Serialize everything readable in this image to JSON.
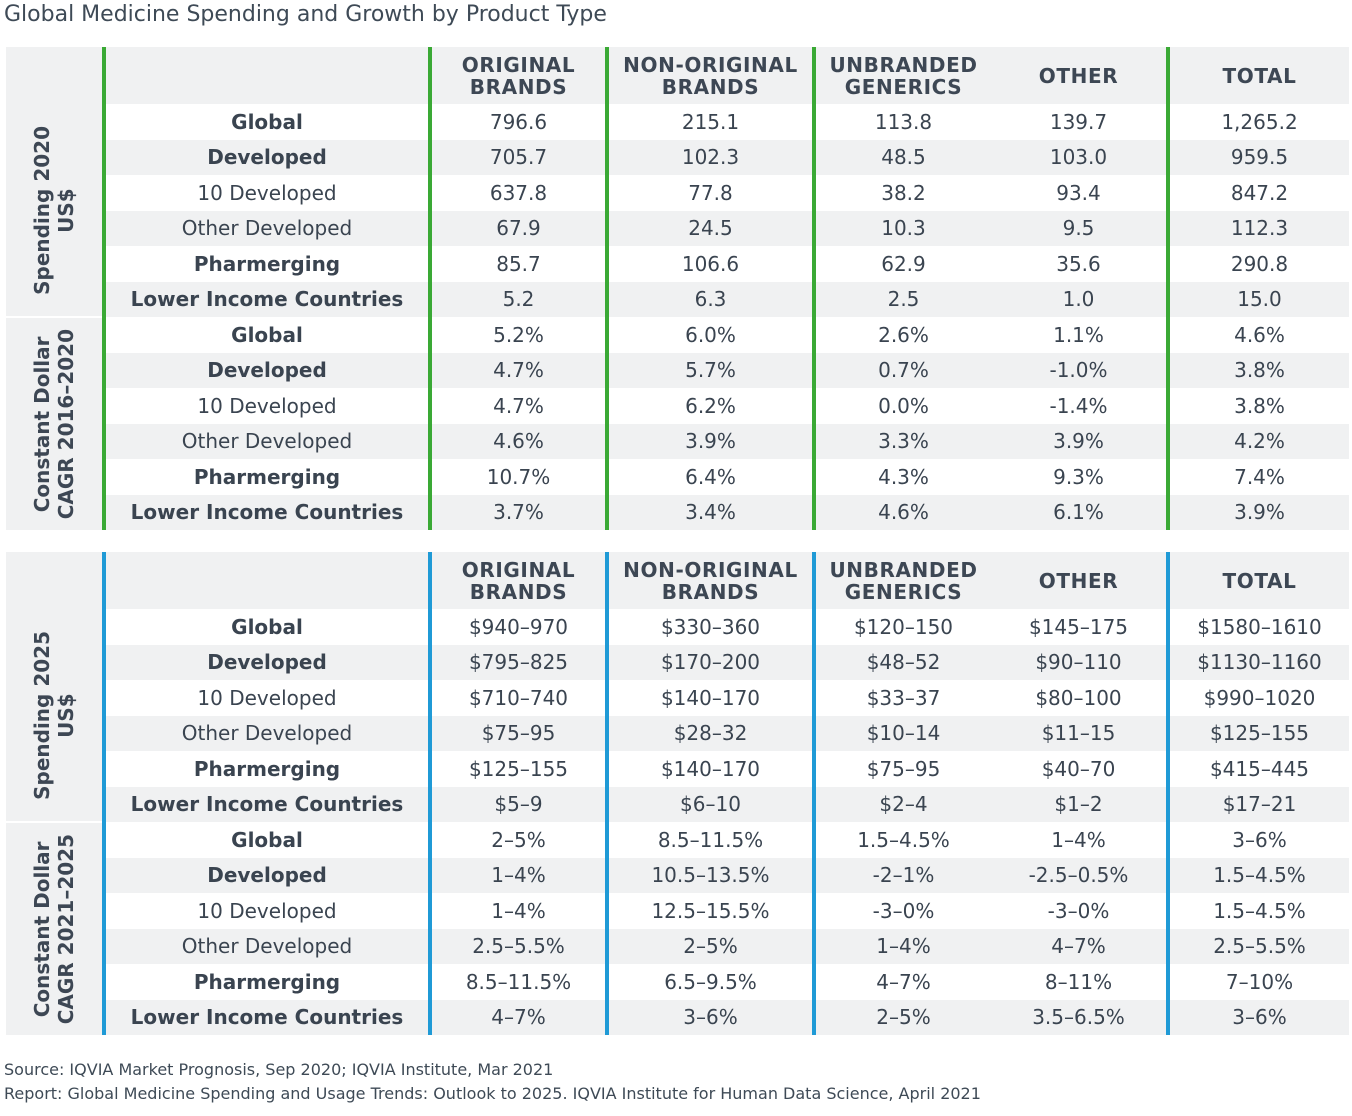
{
  "title": "Global Medicine Spending and Growth by Product Type",
  "colors": {
    "table1_accent": "#3aa935",
    "table2_accent": "#1f9ad6",
    "shade": "#f0f1f2"
  },
  "chart_data": [
    {
      "type": "table",
      "columns": [
        "ORIGINAL BRANDS",
        "NON-ORIGINAL BRANDS",
        "UNBRANDED GENERICS",
        "OTHER",
        "TOTAL"
      ],
      "sections": [
        {
          "label_lines": [
            "Spending 2020",
            "US$"
          ],
          "rows": [
            {
              "label": "Global",
              "level": 0,
              "values": [
                "796.6",
                "215.1",
                "113.8",
                "139.7",
                "1,265.2"
              ]
            },
            {
              "label": "Developed",
              "level": 1,
              "values": [
                "705.7",
                "102.3",
                "48.5",
                "103.0",
                "959.5"
              ]
            },
            {
              "label": "10 Developed",
              "level": 2,
              "values": [
                "637.8",
                "77.8",
                "38.2",
                "93.4",
                "847.2"
              ]
            },
            {
              "label": "Other Developed",
              "level": 2,
              "values": [
                "67.9",
                "24.5",
                "10.3",
                "9.5",
                "112.3"
              ]
            },
            {
              "label": "Pharmerging",
              "level": 1,
              "values": [
                "85.7",
                "106.6",
                "62.9",
                "35.6",
                "290.8"
              ]
            },
            {
              "label": "Lower Income Countries",
              "level": 1,
              "values": [
                "5.2",
                "6.3",
                "2.5",
                "1.0",
                "15.0"
              ]
            }
          ]
        },
        {
          "label_lines": [
            "Constant Dollar",
            "CAGR 2016–2020"
          ],
          "rows": [
            {
              "label": "Global",
              "level": 0,
              "values": [
                "5.2%",
                "6.0%",
                "2.6%",
                "1.1%",
                "4.6%"
              ]
            },
            {
              "label": "Developed",
              "level": 1,
              "values": [
                "4.7%",
                "5.7%",
                "0.7%",
                "-1.0%",
                "3.8%"
              ]
            },
            {
              "label": "10 Developed",
              "level": 2,
              "values": [
                "4.7%",
                "6.2%",
                "0.0%",
                "-1.4%",
                "3.8%"
              ]
            },
            {
              "label": "Other Developed",
              "level": 2,
              "values": [
                "4.6%",
                "3.9%",
                "3.3%",
                "3.9%",
                "4.2%"
              ]
            },
            {
              "label": "Pharmerging",
              "level": 1,
              "values": [
                "10.7%",
                "6.4%",
                "4.3%",
                "9.3%",
                "7.4%"
              ]
            },
            {
              "label": "Lower Income Countries",
              "level": 1,
              "values": [
                "3.7%",
                "3.4%",
                "4.6%",
                "6.1%",
                "3.9%"
              ]
            }
          ]
        }
      ]
    },
    {
      "type": "table",
      "columns": [
        "ORIGINAL BRANDS",
        "NON-ORIGINAL BRANDS",
        "UNBRANDED GENERICS",
        "OTHER",
        "TOTAL"
      ],
      "sections": [
        {
          "label_lines": [
            "Spending 2025",
            "US$"
          ],
          "rows": [
            {
              "label": "Global",
              "level": 0,
              "values": [
                "$940–970",
                "$330–360",
                "$120–150",
                "$145–175",
                "$1580–1610"
              ]
            },
            {
              "label": "Developed",
              "level": 1,
              "values": [
                "$795–825",
                "$170–200",
                "$48–52",
                "$90–110",
                "$1130–1160"
              ]
            },
            {
              "label": "10 Developed",
              "level": 2,
              "values": [
                "$710–740",
                "$140–170",
                "$33–37",
                "$80–100",
                "$990–1020"
              ]
            },
            {
              "label": "Other Developed",
              "level": 2,
              "values": [
                "$75–95",
                "$28–32",
                "$10–14",
                "$11–15",
                "$125–155"
              ]
            },
            {
              "label": "Pharmerging",
              "level": 1,
              "values": [
                "$125–155",
                "$140–170",
                "$75–95",
                "$40–70",
                "$415–445"
              ]
            },
            {
              "label": "Lower Income Countries",
              "level": 1,
              "values": [
                "$5–9",
                "$6–10",
                "$2–4",
                "$1–2",
                "$17–21"
              ]
            }
          ]
        },
        {
          "label_lines": [
            "Constant Dollar",
            "CAGR 2021–2025"
          ],
          "rows": [
            {
              "label": "Global",
              "level": 0,
              "values": [
                "2–5%",
                "8.5–11.5%",
                "1.5–4.5%",
                "1–4%",
                "3–6%"
              ]
            },
            {
              "label": "Developed",
              "level": 1,
              "values": [
                "1–4%",
                "10.5–13.5%",
                "-2–1%",
                "-2.5–0.5%",
                "1.5–4.5%"
              ]
            },
            {
              "label": "10 Developed",
              "level": 2,
              "values": [
                "1–4%",
                "12.5–15.5%",
                "-3–0%",
                "-3–0%",
                "1.5–4.5%"
              ]
            },
            {
              "label": "Other Developed",
              "level": 2,
              "values": [
                "2.5–5.5%",
                "2–5%",
                "1–4%",
                "4–7%",
                "2.5–5.5%"
              ]
            },
            {
              "label": "Pharmerging",
              "level": 1,
              "values": [
                "8.5–11.5%",
                "6.5–9.5%",
                "4–7%",
                "8–11%",
                "7–10%"
              ]
            },
            {
              "label": "Lower Income Countries",
              "level": 1,
              "values": [
                "4–7%",
                "3–6%",
                "2–5%",
                "3.5–6.5%",
                "3–6%"
              ]
            }
          ]
        }
      ]
    }
  ],
  "footer": {
    "source": "Source: IQVIA Market Prognosis, Sep 2020; IQVIA Institute, Mar 2021",
    "report": "Report: Global Medicine Spending and Usage Trends: Outlook to 2025. IQVIA Institute for Human Data Science, April 2021"
  }
}
